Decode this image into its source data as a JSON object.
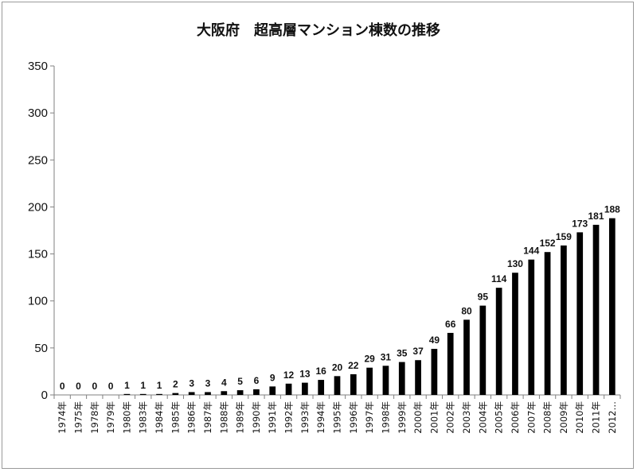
{
  "chart_data": {
    "type": "bar",
    "title": "大阪府　超高層マンション棟数の推移",
    "xlabel": "",
    "ylabel": "",
    "ylim": [
      0,
      350
    ],
    "yticks": [
      0,
      50,
      100,
      150,
      200,
      250,
      300,
      350
    ],
    "grid": false,
    "legend": "none",
    "bar_color": "#000000",
    "categories": [
      "1974年",
      "1975年",
      "1978年",
      "1979年",
      "1980年",
      "1983年",
      "1984年",
      "1985年",
      "1986年",
      "1987年",
      "1988年",
      "1989年",
      "1990年",
      "1991年",
      "1992年",
      "1993年",
      "1994年",
      "1995年",
      "1996年",
      "1997年",
      "1998年",
      "1999年",
      "2000年",
      "2001年",
      "2002年",
      "2003年",
      "2004年",
      "2005年",
      "2006年",
      "2007年",
      "2008年",
      "2009年",
      "2010年",
      "2011年",
      "2012…"
    ],
    "values": [
      0,
      0,
      0,
      0,
      1,
      1,
      1,
      2,
      3,
      3,
      4,
      5,
      6,
      9,
      12,
      13,
      16,
      20,
      22,
      29,
      31,
      35,
      37,
      49,
      66,
      80,
      95,
      114,
      130,
      144,
      152,
      159,
      173,
      181,
      188
    ]
  }
}
